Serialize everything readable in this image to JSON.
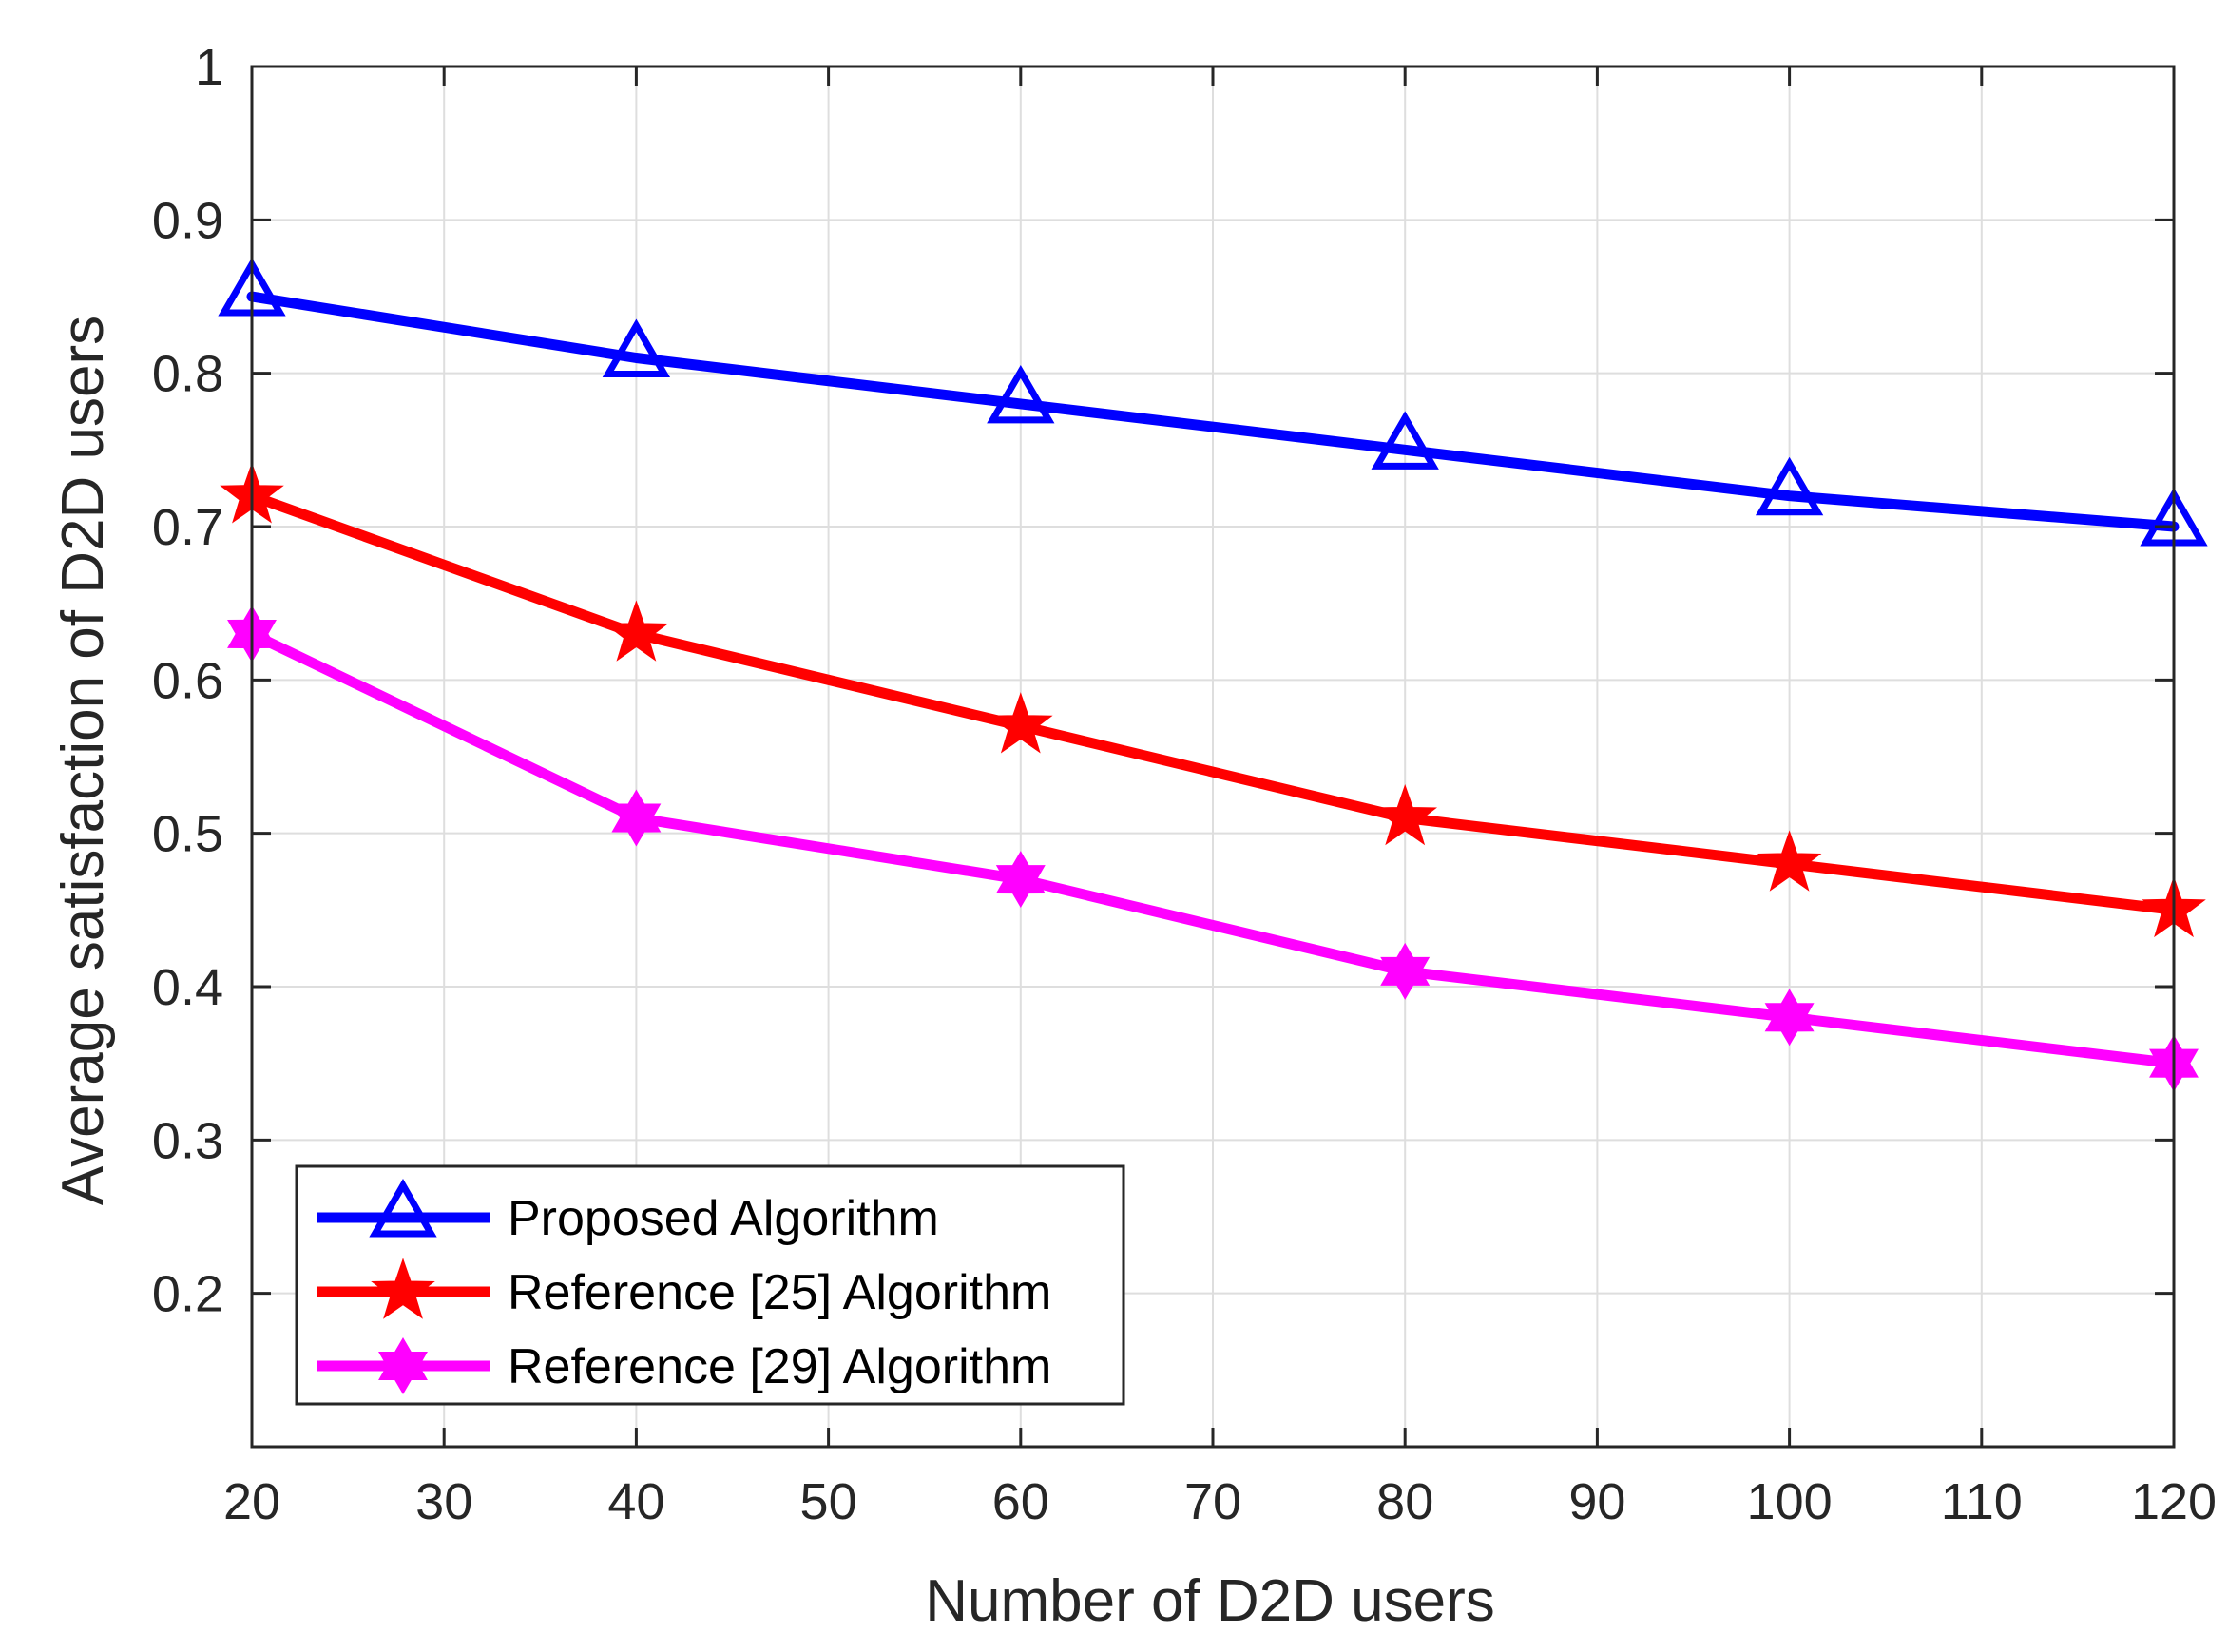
{
  "chart_data": {
    "type": "line",
    "title": "",
    "xlabel": "Number of D2D users",
    "ylabel": "Average satisfaction of D2D users",
    "xlim": [
      20,
      120
    ],
    "ylim": [
      0.1,
      1
    ],
    "xticks": [
      20,
      30,
      40,
      50,
      60,
      70,
      80,
      90,
      100,
      110,
      120
    ],
    "yticks": [
      0.2,
      0.3,
      0.4,
      0.5,
      0.6,
      0.7,
      0.8,
      0.9,
      1
    ],
    "xtick_labels": [
      "20",
      "30",
      "40",
      "50",
      "60",
      "70",
      "80",
      "90",
      "100",
      "110",
      "120"
    ],
    "ytick_labels": [
      "0.2",
      "0.3",
      "0.4",
      "0.5",
      "0.6",
      "0.7",
      "0.8",
      "0.9",
      "1"
    ],
    "grid": true,
    "legend_position": "bottom-left",
    "x": [
      20,
      40,
      60,
      80,
      100,
      120
    ],
    "series": [
      {
        "name": "Proposed Algorithm",
        "color": "#0000ff",
        "marker": "triangle",
        "values": [
          0.85,
          0.81,
          0.78,
          0.75,
          0.72,
          0.7
        ]
      },
      {
        "name": "Reference [25] Algorithm",
        "color": "#ff0000",
        "marker": "pentagram",
        "values": [
          0.72,
          0.63,
          0.57,
          0.51,
          0.48,
          0.45
        ]
      },
      {
        "name": "Reference [29] Algorithm",
        "color": "#ff00ff",
        "marker": "hexagram",
        "values": [
          0.63,
          0.51,
          0.47,
          0.41,
          0.38,
          0.35
        ]
      }
    ]
  }
}
